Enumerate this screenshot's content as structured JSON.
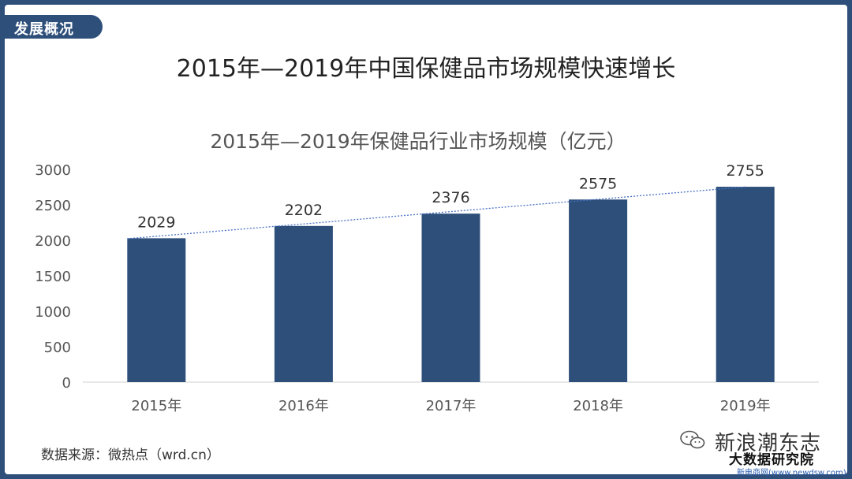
{
  "header": {
    "tag": "发展概况",
    "title": "2015年—2019年中国保健品市场规模快速增长"
  },
  "chart_data": {
    "type": "bar",
    "title": "2015年—2019年保健品行业市场规模（亿元）",
    "categories": [
      "2015年",
      "2016年",
      "2017年",
      "2018年",
      "2019年"
    ],
    "values": [
      2029,
      2202,
      2376,
      2575,
      2755
    ],
    "ylim": [
      0,
      3000
    ],
    "yticks": [
      0,
      500,
      1000,
      1500,
      2000,
      2500,
      3000
    ],
    "trendline": "linear, dotted",
    "grid": false,
    "bar_color": "#2d4f7a",
    "trend_color": "#4a72c4"
  },
  "footer": {
    "source": "数据来源：微热点（wrd.cn）",
    "logo_line1": "新浪潮东志",
    "logo_line2": "大数据研究院",
    "logo_url": "新电商网(www.newdsw.com)",
    "wechat_icon": "wechat-icon"
  },
  "colors": {
    "frame": "#2d4f7a",
    "accent": "#2d4f7a"
  }
}
